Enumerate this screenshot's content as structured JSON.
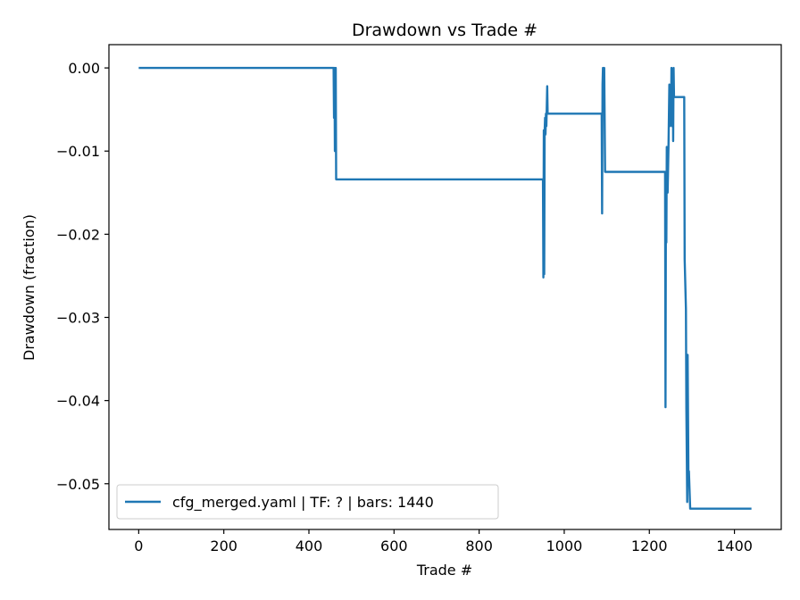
{
  "chart_data": {
    "type": "line",
    "title": "Drawdown vs Trade #",
    "xlabel": "Trade #",
    "ylabel": "Drawdown (fraction)",
    "xlim": [
      -70,
      1510
    ],
    "ylim": [
      -0.0555,
      0.0028
    ],
    "x_ticks": [
      0,
      200,
      400,
      600,
      800,
      1000,
      1200,
      1400
    ],
    "x_tick_labels": [
      "0",
      "200",
      "400",
      "600",
      "800",
      "1000",
      "1200",
      "1400"
    ],
    "y_ticks": [
      0.0,
      -0.01,
      -0.02,
      -0.03,
      -0.04,
      -0.05
    ],
    "y_tick_labels": [
      "0.00",
      "−0.01",
      "−0.02",
      "−0.03",
      "−0.04",
      "−0.05"
    ],
    "grid": false,
    "legend_position": "lower-left",
    "series": [
      {
        "name": "cfg_merged.yaml | TF: ? | bars: 1440",
        "color": "#1f77b4",
        "points": [
          [
            0,
            0.0
          ],
          [
            458,
            0.0
          ],
          [
            459,
            -0.006
          ],
          [
            460,
            0.0
          ],
          [
            461,
            -0.01
          ],
          [
            462,
            -0.004
          ],
          [
            463,
            0.0
          ],
          [
            464,
            -0.0134
          ],
          [
            950,
            -0.0134
          ],
          [
            951,
            -0.0252
          ],
          [
            952,
            -0.0075
          ],
          [
            953,
            -0.0248
          ],
          [
            954,
            -0.0075
          ],
          [
            955,
            -0.006
          ],
          [
            956,
            -0.008
          ],
          [
            957,
            -0.0055
          ],
          [
            958,
            -0.007
          ],
          [
            960,
            -0.0022
          ],
          [
            961,
            -0.0055
          ],
          [
            1088,
            -0.0055
          ],
          [
            1089,
            -0.0175
          ],
          [
            1090,
            -0.002
          ],
          [
            1091,
            0.0
          ],
          [
            1093,
            -0.0005
          ],
          [
            1094,
            0.0
          ],
          [
            1096,
            -0.0125
          ],
          [
            1237,
            -0.0125
          ],
          [
            1238,
            -0.0408
          ],
          [
            1239,
            -0.015
          ],
          [
            1240,
            -0.021
          ],
          [
            1241,
            -0.0095
          ],
          [
            1243,
            -0.015
          ],
          [
            1245,
            -0.0095
          ],
          [
            1247,
            -0.002
          ],
          [
            1248,
            -0.007
          ],
          [
            1250,
            -0.0025
          ],
          [
            1251,
            -0.006
          ],
          [
            1252,
            0.0
          ],
          [
            1253,
            -0.007
          ],
          [
            1255,
            -0.0005
          ],
          [
            1256,
            -0.0088
          ],
          [
            1257,
            0.0
          ],
          [
            1258,
            -0.0035
          ],
          [
            1282,
            -0.0035
          ],
          [
            1283,
            -0.023
          ],
          [
            1286,
            -0.029
          ],
          [
            1287,
            -0.041
          ],
          [
            1289,
            -0.0522
          ],
          [
            1290,
            -0.0345
          ],
          [
            1292,
            -0.05
          ],
          [
            1293,
            -0.0485
          ],
          [
            1296,
            -0.053
          ],
          [
            1440,
            -0.053
          ]
        ]
      }
    ]
  }
}
